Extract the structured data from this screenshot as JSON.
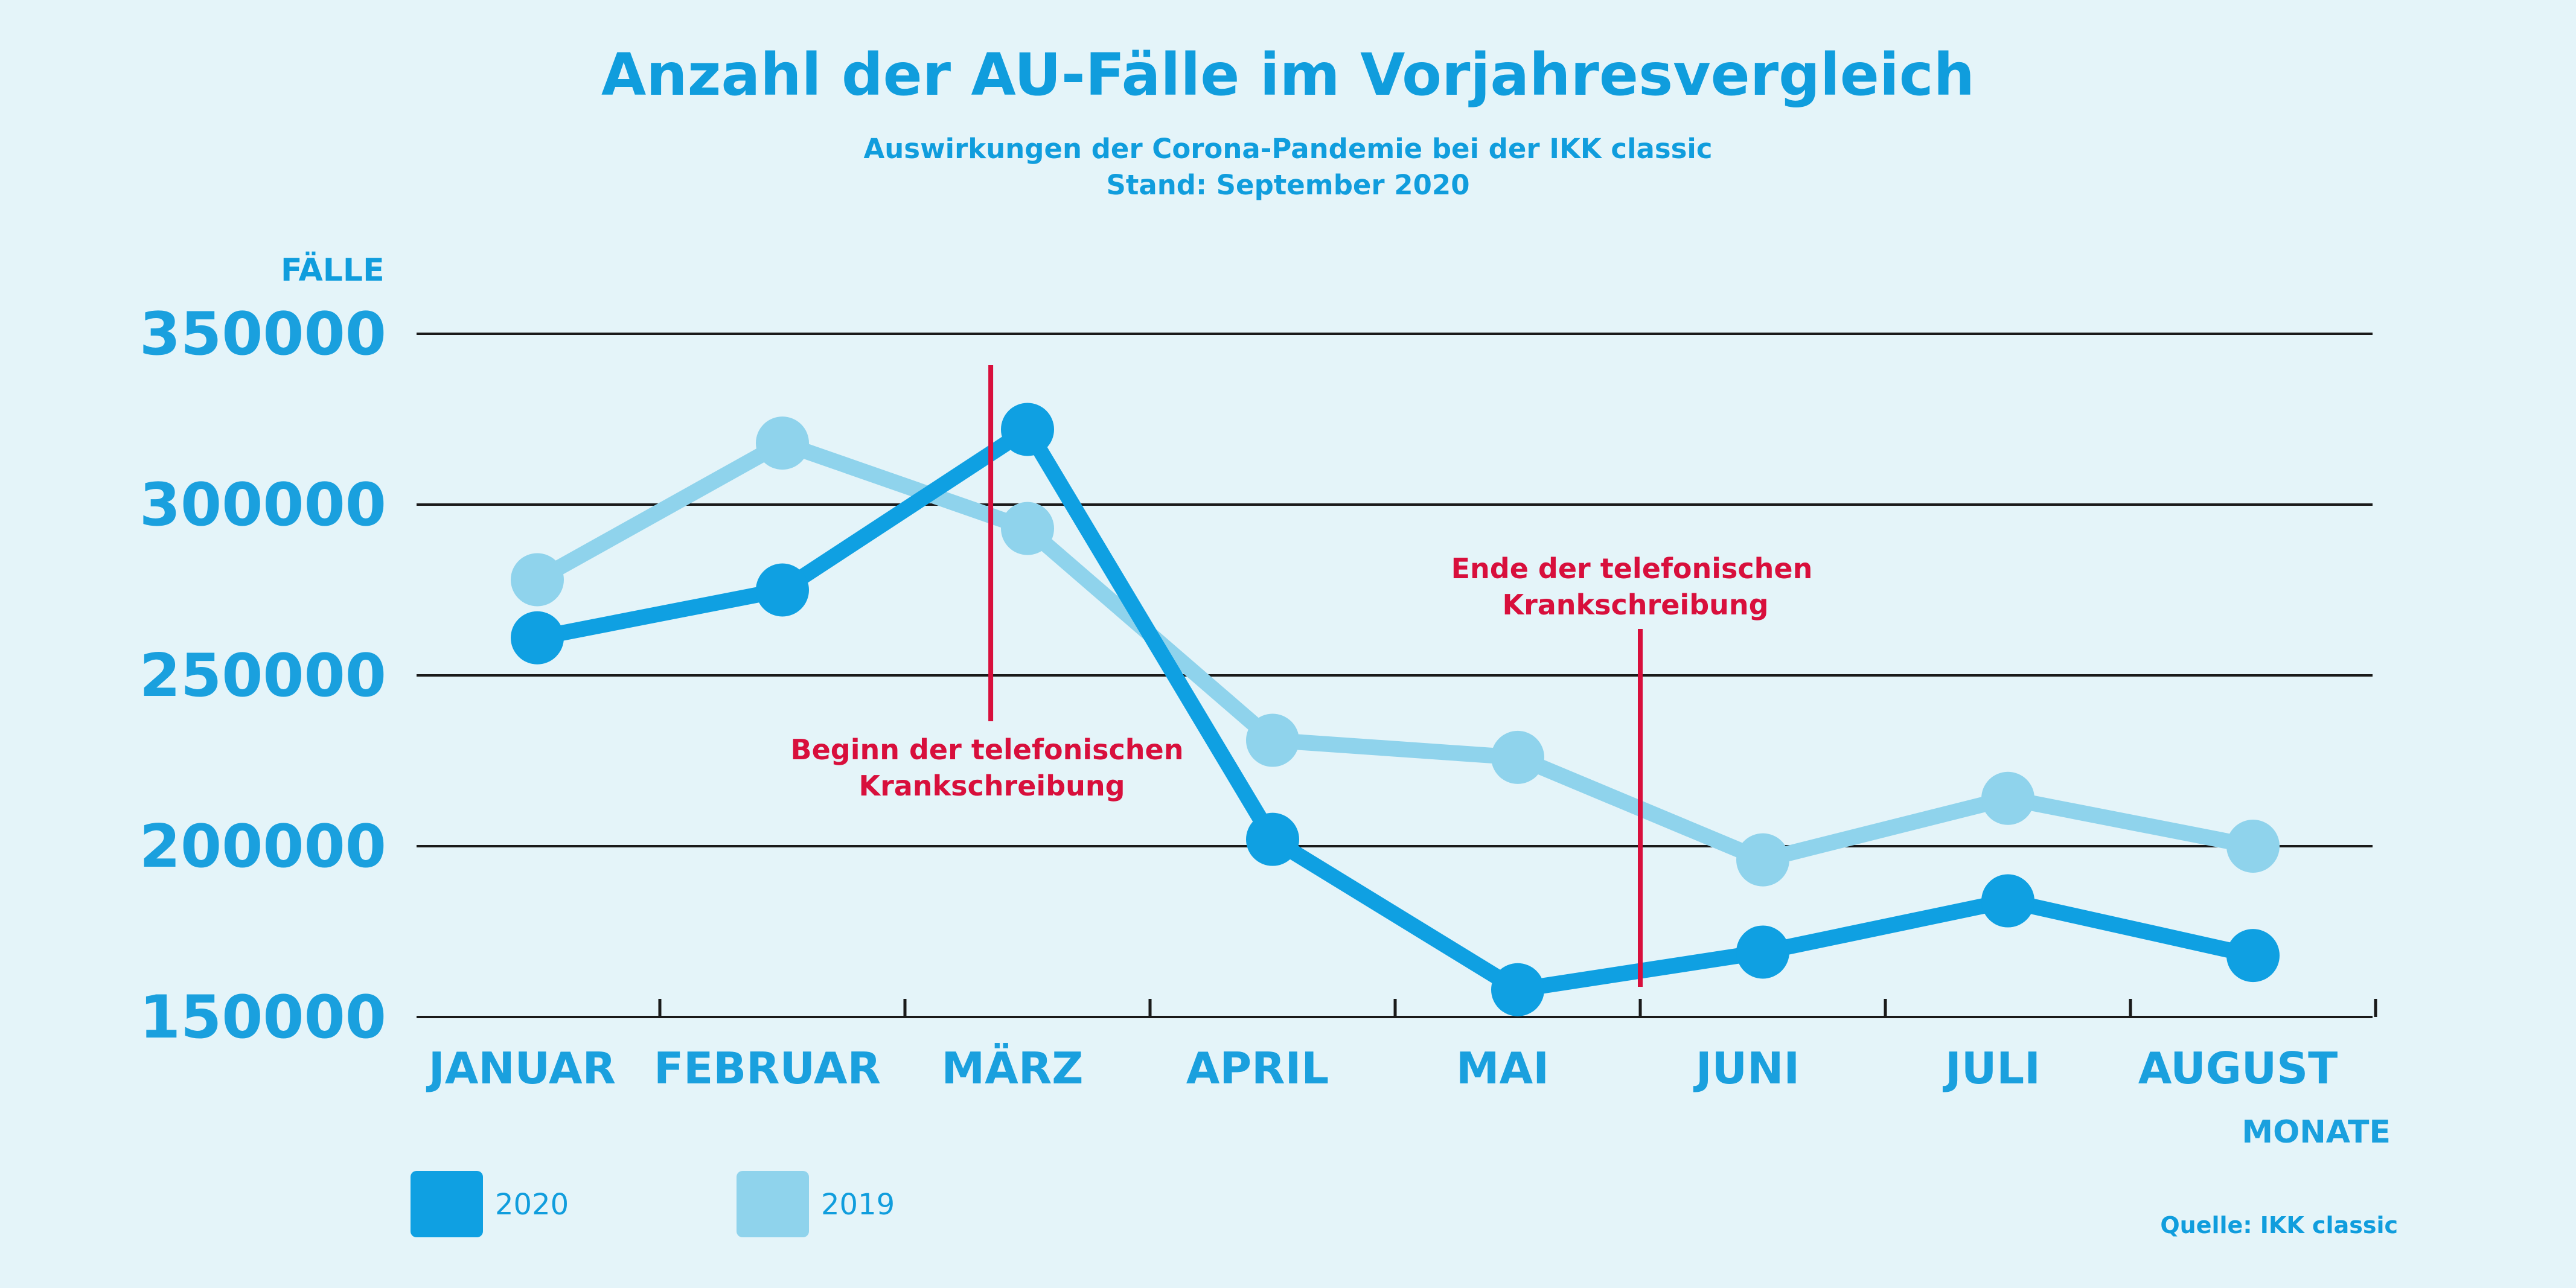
{
  "header": {
    "title": "Anzahl der AU-Fälle im Vorjahresvergleich",
    "subtitle_line1": "Auswirkungen der Corona-Pandemie bei der IKK classic",
    "subtitle_line2": "Stand: September 2020"
  },
  "chart_data": {
    "type": "line",
    "title": "Anzahl der AU-Fälle im Vorjahresvergleich",
    "xlabel": "MONATE",
    "ylabel": "FÄLLE",
    "categories": [
      "JANUAR",
      "FEBRUAR",
      "MÄRZ",
      "APRIL",
      "MAI",
      "JUNI",
      "JULI",
      "AUGUST"
    ],
    "ylim": [
      150000,
      350000
    ],
    "yticks": [
      "350000",
      "300000",
      "250000",
      "200000",
      "150000"
    ],
    "grid": true,
    "legend_position": "bottom-left",
    "series": [
      {
        "name": "2020",
        "color": "#0fa0e2",
        "values": [
          261000,
          275000,
          322000,
          202000,
          158000,
          169000,
          184000,
          168000
        ]
      },
      {
        "name": "2019",
        "color": "#8fd3ec",
        "values": [
          278000,
          318000,
          293000,
          231000,
          226000,
          196000,
          214000,
          200000
        ]
      }
    ],
    "annotations": [
      {
        "label_line1": "Beginn der telefonischen",
        "label_line2": "Krankschreibung",
        "color": "#d80f3c",
        "month_index": 2,
        "offset": -0.15
      },
      {
        "label_line1": "Ende der telefonischen",
        "label_line2": "Krankschreibung",
        "color": "#d80f3c",
        "month_index": 4,
        "offset": 0.5
      }
    ]
  },
  "source": "Quelle: IKK classic"
}
